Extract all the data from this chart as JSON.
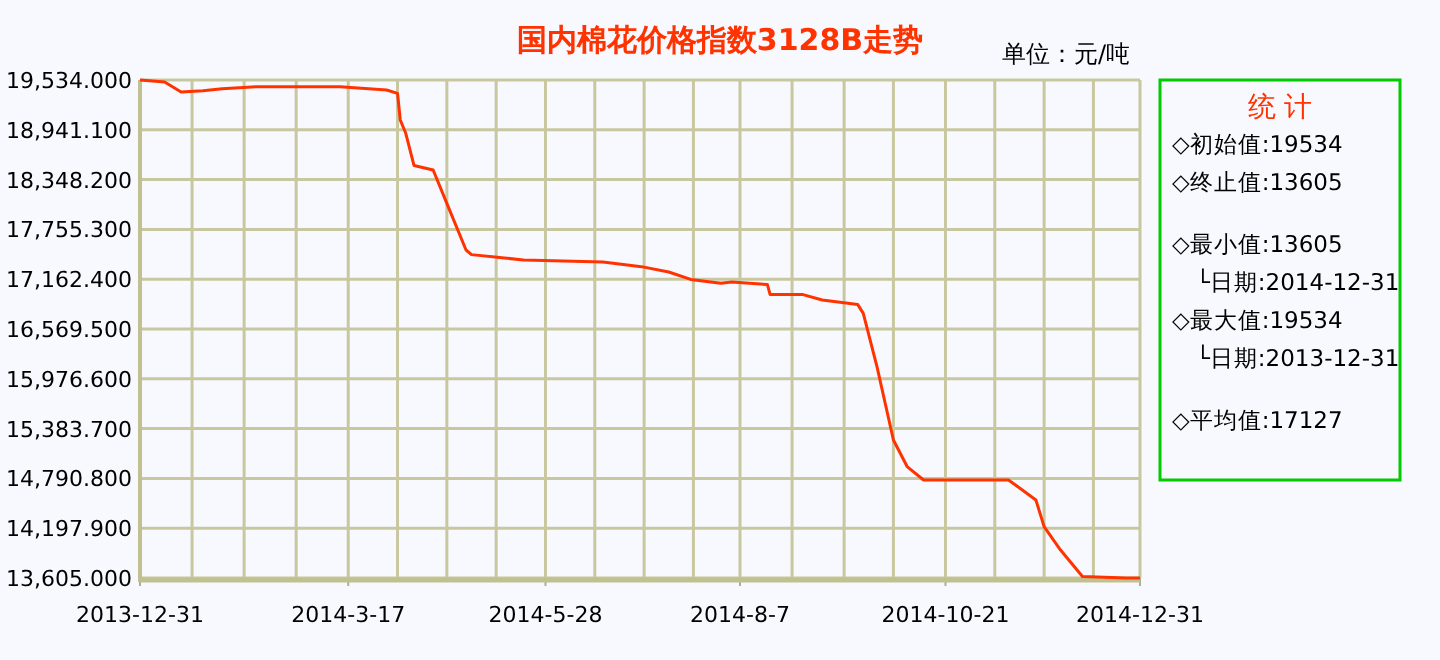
{
  "chart_data": {
    "type": "line",
    "title": "国内棉花价格指数3128B走势",
    "ylabel": "单位：元/吨",
    "annotations": [
      "统 计",
      "◇初始值:19534",
      "◇终止值:13605",
      "◇最小值:13605",
      "└日期:2014-12-31",
      "◇最大值:19534",
      "└日期:2013-12-31",
      "◇平均值:17127"
    ],
    "series": [
      {
        "color": "#ff3300",
        "x": [
          "2013-12-31",
          "2014-01-09",
          "2014-01-15",
          "2014-01-23",
          "2014-01-30",
          "2014-02-12",
          "2014-03-14",
          "2014-03-31",
          "2014-04-04",
          "2014-04-05",
          "2014-04-07",
          "2014-04-10",
          "2014-04-17",
          "2014-04-22",
          "2014-04-29",
          "2014-05-01",
          "2014-05-13",
          "2014-05-20",
          "2014-06-18",
          "2014-07-02",
          "2014-07-12",
          "2014-07-20",
          "2014-07-31",
          "2014-08-04",
          "2014-08-17",
          "2014-08-18",
          "2014-08-30",
          "2014-09-06",
          "2014-09-19",
          "2014-09-21",
          "2014-09-26",
          "2014-10-02",
          "2014-10-07",
          "2014-10-13",
          "2014-10-28",
          "2014-11-13",
          "2014-11-23",
          "2014-11-26",
          "2014-12-02",
          "2014-12-10",
          "2014-12-26",
          "2014-12-31"
        ],
        "values": [
          19534,
          19510,
          19391,
          19407,
          19430,
          19455,
          19455,
          19415,
          19375,
          19058,
          18900,
          18517,
          18463,
          18065,
          17510,
          17455,
          17415,
          17390,
          17367,
          17312,
          17248,
          17160,
          17113,
          17129,
          17098,
          16979,
          16979,
          16915,
          16860,
          16756,
          16122,
          15248,
          14932,
          14772,
          14772,
          14772,
          14534,
          14217,
          13938,
          13622,
          13605,
          13605
        ]
      }
    ],
    "xlim": [
      "2013-12-31",
      "2014-12-31"
    ],
    "xticks": [
      {
        "value": "2013-12-31",
        "label": "2013-12-31"
      },
      {
        "value": "2014-01-19",
        "label": null
      },
      {
        "value": "2014-02-07",
        "label": null
      },
      {
        "value": "2014-02-26",
        "label": null
      },
      {
        "value": "2014-03-17",
        "label": "2014-3-17"
      },
      {
        "value": "2014-04-04",
        "label": null
      },
      {
        "value": "2014-04-22",
        "label": null
      },
      {
        "value": "2014-05-10",
        "label": null
      },
      {
        "value": "2014-05-28",
        "label": "2014-5-28"
      },
      {
        "value": "2014-06-15",
        "label": null
      },
      {
        "value": "2014-07-03",
        "label": null
      },
      {
        "value": "2014-07-21",
        "label": null
      },
      {
        "value": "2014-08-07",
        "label": "2014-8-7"
      },
      {
        "value": "2014-08-26",
        "label": null
      },
      {
        "value": "2014-09-14",
        "label": null
      },
      {
        "value": "2014-10-02",
        "label": null
      },
      {
        "value": "2014-10-21",
        "label": "2014-10-21"
      },
      {
        "value": "2014-11-08",
        "label": null
      },
      {
        "value": "2014-11-26",
        "label": null
      },
      {
        "value": "2014-12-14",
        "label": null
      },
      {
        "value": "2014-12-31",
        "label": "2014-12-31"
      }
    ],
    "ylim": [
      13605,
      19534
    ],
    "yticks": [
      {
        "value": 13605,
        "label": "13,605.000"
      },
      {
        "value": 14197.9,
        "label": "14,197.900"
      },
      {
        "value": 14790.8,
        "label": "14,790.800"
      },
      {
        "value": 15383.7,
        "label": "15,383.700"
      },
      {
        "value": 15976.6,
        "label": "15,976.600"
      },
      {
        "value": 16569.5,
        "label": "16,569.500"
      },
      {
        "value": 17162.4,
        "label": "17,162.400"
      },
      {
        "value": 17755.3,
        "label": "17,755.300"
      },
      {
        "value": 18348.2,
        "label": "18,348.200"
      },
      {
        "value": 18941.1,
        "label": "18,941.100"
      },
      {
        "value": 19534,
        "label": "19,534.000"
      }
    ],
    "grid": true,
    "marker": "none",
    "line_style": "solid"
  }
}
